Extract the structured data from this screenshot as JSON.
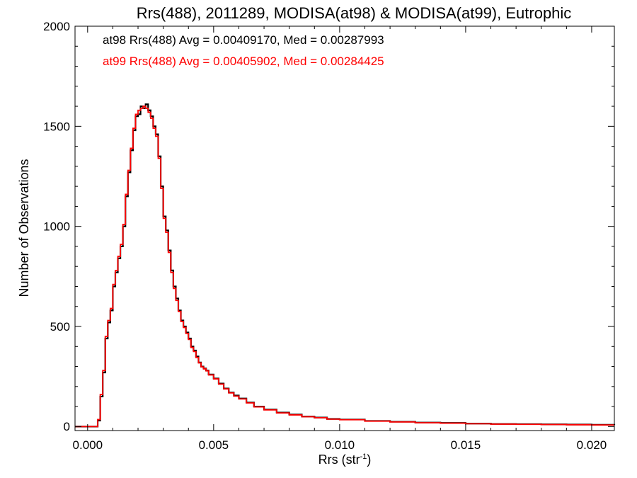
{
  "chart_data": {
    "type": "line",
    "title": "Rrs(488), 2011289, MODISA(at98) & MODISA(at99), Eutrophic",
    "xlabel": "Rrs (str",
    "xlabel_sup": "-1",
    "xlabel_end": ")",
    "ylabel": "Number of Observations",
    "xlim": [
      -0.0005,
      0.0209
    ],
    "ylim": [
      -20,
      2000
    ],
    "x_ticks": [
      0.0,
      0.005,
      0.01,
      0.015,
      0.02
    ],
    "x_tick_labels": [
      "0.000",
      "0.005",
      "0.010",
      "0.015",
      "0.020"
    ],
    "y_ticks": [
      0,
      500,
      1000,
      1500,
      2000
    ],
    "y_tick_labels": [
      "0",
      "500",
      "1000",
      "1500",
      "2000"
    ],
    "grid": false,
    "step": true,
    "series": [
      {
        "name": "at98",
        "color": "#000000",
        "x": [
          -0.0005,
          0.0004,
          0.0005,
          0.0006,
          0.0007,
          0.0008,
          0.0009,
          0.001,
          0.0011,
          0.0012,
          0.0013,
          0.0014,
          0.0015,
          0.0016,
          0.0017,
          0.0018,
          0.0019,
          0.002,
          0.0021,
          0.0022,
          0.0023,
          0.0024,
          0.0025,
          0.0026,
          0.0027,
          0.0028,
          0.0029,
          0.003,
          0.0031,
          0.0032,
          0.0033,
          0.0034,
          0.0035,
          0.0036,
          0.0037,
          0.0038,
          0.0039,
          0.004,
          0.0041,
          0.0042,
          0.0043,
          0.0044,
          0.0045,
          0.0046,
          0.0047,
          0.0048,
          0.005,
          0.0052,
          0.0054,
          0.0056,
          0.0058,
          0.006,
          0.0063,
          0.0066,
          0.007,
          0.0075,
          0.008,
          0.0085,
          0.009,
          0.0095,
          0.01,
          0.011,
          0.012,
          0.013,
          0.014,
          0.015,
          0.016,
          0.017,
          0.018,
          0.019,
          0.02,
          0.0209
        ],
        "y": [
          0,
          30,
          150,
          270,
          440,
          520,
          580,
          700,
          770,
          840,
          900,
          1000,
          1150,
          1270,
          1380,
          1480,
          1550,
          1560,
          1600,
          1590,
          1610,
          1580,
          1550,
          1500,
          1460,
          1350,
          1200,
          1050,
          980,
          880,
          780,
          700,
          640,
          580,
          530,
          500,
          470,
          440,
          400,
          380,
          350,
          320,
          300,
          290,
          280,
          260,
          240,
          215,
          190,
          170,
          155,
          140,
          120,
          100,
          85,
          70,
          60,
          50,
          45,
          38,
          35,
          28,
          24,
          20,
          18,
          15,
          13,
          12,
          11,
          10,
          9,
          8
        ]
      },
      {
        "name": "at99",
        "color": "#ff0000",
        "x": [
          -0.0005,
          0.0004,
          0.0005,
          0.0006,
          0.0007,
          0.0008,
          0.0009,
          0.001,
          0.0011,
          0.0012,
          0.0013,
          0.0014,
          0.0015,
          0.0016,
          0.0017,
          0.0018,
          0.0019,
          0.002,
          0.0021,
          0.0022,
          0.0023,
          0.0024,
          0.0025,
          0.0026,
          0.0027,
          0.0028,
          0.0029,
          0.003,
          0.0031,
          0.0032,
          0.0033,
          0.0034,
          0.0035,
          0.0036,
          0.0037,
          0.0038,
          0.0039,
          0.004,
          0.0041,
          0.0042,
          0.0043,
          0.0044,
          0.0045,
          0.0046,
          0.0047,
          0.0048,
          0.005,
          0.0052,
          0.0054,
          0.0056,
          0.0058,
          0.006,
          0.0063,
          0.0066,
          0.007,
          0.0075,
          0.008,
          0.0085,
          0.009,
          0.0095,
          0.01,
          0.011,
          0.012,
          0.013,
          0.014,
          0.015,
          0.016,
          0.017,
          0.018,
          0.019,
          0.02,
          0.0209
        ],
        "y": [
          0,
          35,
          160,
          280,
          450,
          530,
          590,
          710,
          780,
          850,
          910,
          1010,
          1160,
          1280,
          1390,
          1490,
          1560,
          1580,
          1590,
          1600,
          1590,
          1570,
          1540,
          1490,
          1450,
          1340,
          1190,
          1040,
          970,
          870,
          770,
          690,
          630,
          575,
          525,
          495,
          465,
          435,
          395,
          375,
          345,
          318,
          298,
          288,
          278,
          258,
          238,
          212,
          188,
          168,
          152,
          138,
          118,
          98,
          83,
          68,
          58,
          49,
          44,
          37,
          34,
          27,
          23,
          19,
          17,
          14,
          12,
          11,
          10,
          9,
          8,
          8
        ]
      }
    ],
    "annotations": [
      {
        "text": "at98 Rrs(488) Avg = 0.00409170, Med = 0.00287993",
        "color": "#000000"
      },
      {
        "text": "at99 Rrs(488) Avg = 0.00405902, Med = 0.00284425",
        "color": "#ff0000"
      }
    ]
  }
}
